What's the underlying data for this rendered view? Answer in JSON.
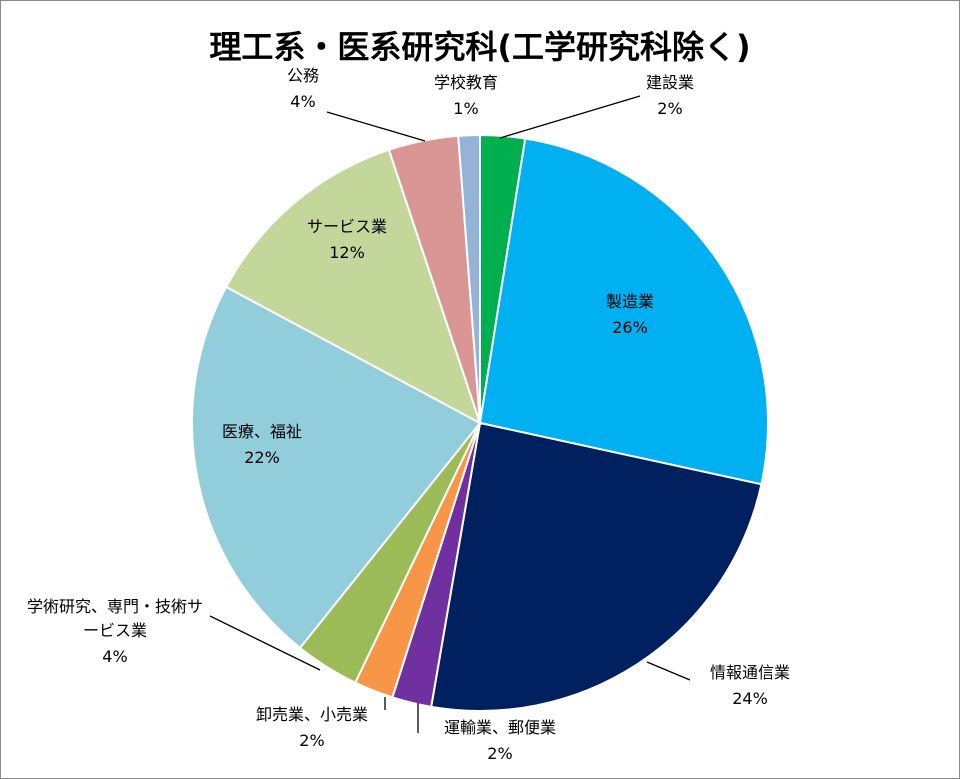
{
  "chart_data": {
    "type": "pie",
    "title": "理工系・医系研究科(工学研究科除く)",
    "start_angle_deg": 0,
    "direction": "clockwise",
    "legend": "none",
    "slices": [
      {
        "name": "建設業",
        "value": 2.5,
        "label": "2%",
        "color": "#00b050"
      },
      {
        "name": "製造業",
        "value": 25.8,
        "label": "26%",
        "color": "#00b0f0"
      },
      {
        "name": "情報通信業",
        "value": 24.2,
        "label": "24%",
        "color": "#002060"
      },
      {
        "name": "運輸業、郵便業",
        "value": 2.2,
        "label": "2%",
        "color": "#7030a0"
      },
      {
        "name": "卸売業、小売業",
        "value": 2.2,
        "label": "2%",
        "color": "#f79646"
      },
      {
        "name": "学術研究、専門・技術サービス業",
        "value": 3.6,
        "label": "4%",
        "color": "#9bbb59"
      },
      {
        "name": "医療、福祉",
        "value": 22.0,
        "label": "22%",
        "color": "#92cddc"
      },
      {
        "name": "サービス業",
        "value": 12.0,
        "label": "12%",
        "color": "#c4d79b"
      },
      {
        "name": "公務",
        "value": 3.9,
        "label": "4%",
        "color": "#da9694"
      },
      {
        "name": "学校教育",
        "value": 1.2,
        "label": "1%",
        "color": "#95b3d7"
      }
    ]
  }
}
